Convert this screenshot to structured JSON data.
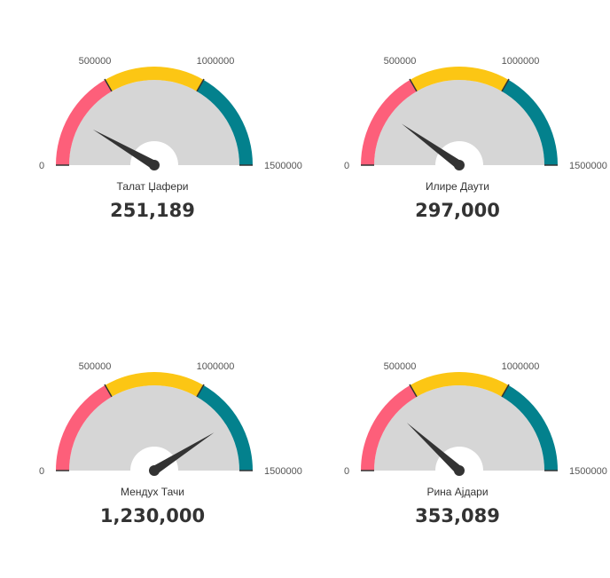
{
  "chart_data": [
    {
      "type": "gauge",
      "name": "Талат Џафери",
      "value": 251189,
      "value_label": "251,189",
      "range": [
        0,
        1500000
      ],
      "ticks": [
        "0",
        "500000",
        "1000000",
        "1500000"
      ],
      "bands": [
        {
          "from": 0,
          "to": 500000,
          "color": "#fd5f7a"
        },
        {
          "from": 500000,
          "to": 1000000,
          "color": "#fcc614"
        },
        {
          "from": 1000000,
          "to": 1500000,
          "color": "#03818d"
        }
      ]
    },
    {
      "type": "gauge",
      "name": "Илире Даути",
      "value": 297000,
      "value_label": "297,000",
      "range": [
        0,
        1500000
      ],
      "ticks": [
        "0",
        "500000",
        "1000000",
        "1500000"
      ],
      "bands": [
        {
          "from": 0,
          "to": 500000,
          "color": "#fd5f7a"
        },
        {
          "from": 500000,
          "to": 1000000,
          "color": "#fcc614"
        },
        {
          "from": 1000000,
          "to": 1500000,
          "color": "#03818d"
        }
      ]
    },
    {
      "type": "gauge",
      "name": "Мендух Тачи",
      "value": 1230000,
      "value_label": "1,230,000",
      "range": [
        0,
        1500000
      ],
      "ticks": [
        "0",
        "500000",
        "1000000",
        "1500000"
      ],
      "bands": [
        {
          "from": 0,
          "to": 500000,
          "color": "#fd5f7a"
        },
        {
          "from": 500000,
          "to": 1000000,
          "color": "#fcc614"
        },
        {
          "from": 1000000,
          "to": 1500000,
          "color": "#03818d"
        }
      ]
    },
    {
      "type": "gauge",
      "name": "Рина Ајдари",
      "value": 353089,
      "value_label": "353,089",
      "range": [
        0,
        1500000
      ],
      "ticks": [
        "0",
        "500000",
        "1000000",
        "1500000"
      ],
      "bands": [
        {
          "from": 0,
          "to": 500000,
          "color": "#fd5f7a"
        },
        {
          "from": 500000,
          "to": 1000000,
          "color": "#fcc614"
        },
        {
          "from": 1000000,
          "to": 1500000,
          "color": "#03818d"
        }
      ]
    }
  ],
  "colors": {
    "dial_background": "#d6d6d6",
    "needle": "#333333",
    "band_separator": "#333333"
  }
}
